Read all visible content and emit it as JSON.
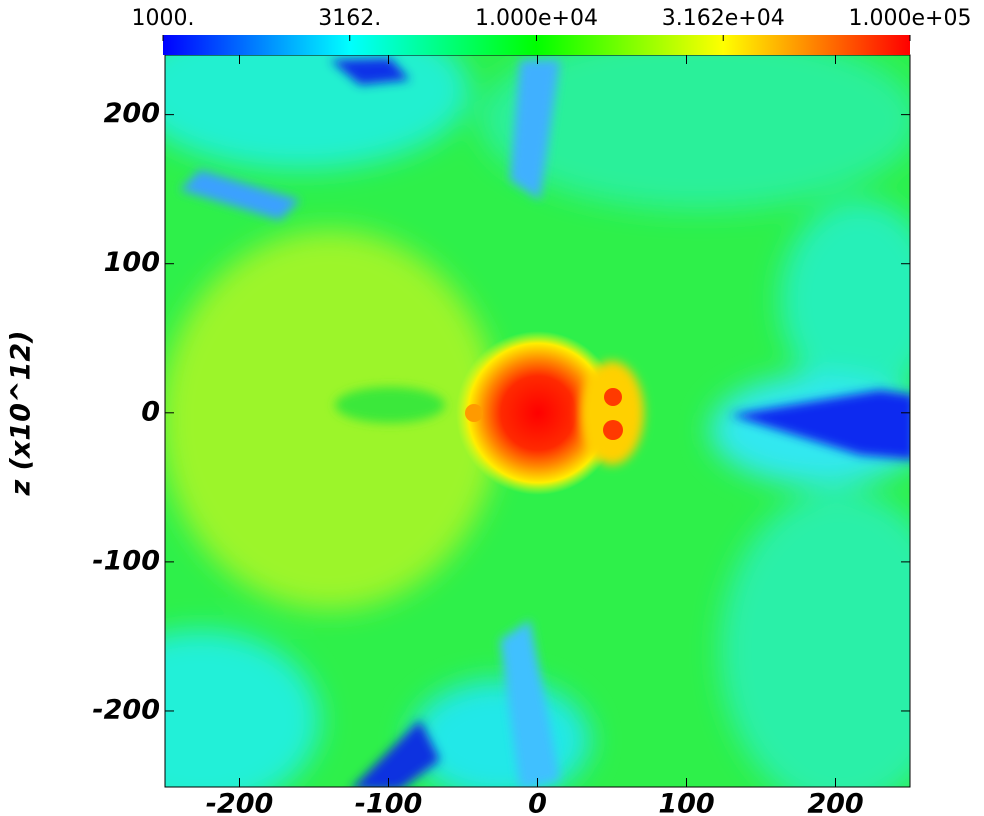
{
  "chart_data": {
    "type": "image",
    "ylabel": "z  (x10^12)",
    "xlim": [
      -250,
      250
    ],
    "ylim": [
      -251,
      240
    ],
    "xticks": [
      -200,
      -100,
      0,
      100,
      200
    ],
    "yticks": [
      -200,
      -100,
      0,
      100,
      200
    ],
    "colorbar": {
      "lim": [
        1000,
        100000
      ],
      "log": true,
      "colors": [
        "#0000ff",
        "#00ffff",
        "#00ff00",
        "#ffff00",
        "#ff0000"
      ],
      "ticks": [
        {
          "value": 1000,
          "label": "1000."
        },
        {
          "value": 3162,
          "label": "3162."
        },
        {
          "value": 10000,
          "label": "1.000e+04"
        },
        {
          "value": 31620,
          "label": "3.162e+04"
        },
        {
          "value": 100000,
          "label": "1.000e+05"
        }
      ]
    }
  }
}
